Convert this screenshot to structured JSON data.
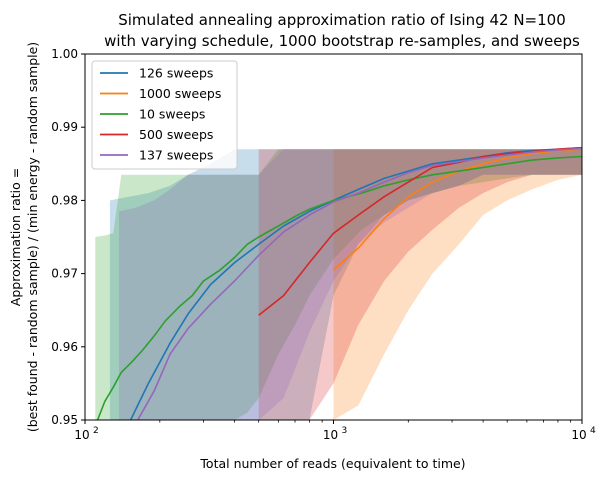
{
  "chart_data": {
    "type": "line",
    "title": "Simulated annealing approximation ratio of Ising 42 N=100\nwith varying schedule, 1000 bootstrap re-samples, and sweeps",
    "xlabel": "Total number of reads (equivalent to time)",
    "ylabel": "Approximation ratio =\n(best found - random sample) / (min energy - random sample)",
    "xscale": "log",
    "xlim": [
      100,
      10000
    ],
    "ylim": [
      0.95,
      1.0
    ],
    "xticks": [
      {
        "value": 100,
        "base": "10",
        "exp": "2"
      },
      {
        "value": 1000,
        "base": "10",
        "exp": "3"
      },
      {
        "value": 10000,
        "base": "10",
        "exp": "4"
      }
    ],
    "yticks": [
      "0.95",
      "0.96",
      "0.97",
      "0.98",
      "0.99",
      "1.00"
    ],
    "legend_position": "upper-left",
    "series": [
      {
        "name": "126 sweeps",
        "color": "#1f77b4",
        "x": [
          126,
          150,
          180,
          220,
          260,
          320,
          400,
          500,
          630,
          800,
          1000,
          1260,
          1600,
          2000,
          2500,
          3200,
          4000,
          5000,
          6300,
          8000,
          10000
        ],
        "y": [
          0.945,
          0.9495,
          0.955,
          0.9605,
          0.9645,
          0.9685,
          0.9715,
          0.974,
          0.9765,
          0.9785,
          0.98,
          0.9815,
          0.983,
          0.984,
          0.985,
          0.9855,
          0.986,
          0.9865,
          0.9868,
          0.987,
          0.9872
        ],
        "band_low": [
          0.95,
          0.95,
          0.95,
          0.95,
          0.95,
          0.95,
          0.95,
          0.95,
          0.95,
          0.95,
          0.967,
          0.974,
          0.978,
          0.98,
          0.981,
          0.982,
          0.9835,
          0.9835,
          0.9835,
          0.9835,
          0.9835
        ],
        "band_high": [
          0.98,
          0.9805,
          0.981,
          0.982,
          0.9835,
          0.985,
          0.987,
          0.987,
          0.987,
          0.987,
          0.987,
          0.987,
          0.987,
          0.987,
          0.987,
          0.987,
          0.987,
          0.987,
          0.987,
          0.987,
          0.987
        ]
      },
      {
        "name": "1000 sweeps",
        "color": "#ff7f0e",
        "x": [
          1000,
          1260,
          1600,
          2000,
          2500,
          3200,
          4000,
          5000,
          6300,
          8000,
          10000
        ],
        "y": [
          0.9705,
          0.9735,
          0.9775,
          0.9805,
          0.9825,
          0.984,
          0.985,
          0.9858,
          0.9864,
          0.9868,
          0.987
        ],
        "band_low": [
          0.95,
          0.952,
          0.959,
          0.965,
          0.97,
          0.974,
          0.978,
          0.98,
          0.9815,
          0.9828,
          0.9835
        ],
        "band_high": [
          0.987,
          0.987,
          0.987,
          0.987,
          0.987,
          0.987,
          0.987,
          0.987,
          0.987,
          0.987,
          0.987
        ]
      },
      {
        "name": "10 sweeps",
        "color": "#2ca02c",
        "x": [
          110,
          120,
          130,
          140,
          155,
          170,
          190,
          210,
          240,
          270,
          300,
          350,
          400,
          450,
          500,
          600,
          700,
          800,
          1000,
          1300,
          1600,
          2000,
          2500,
          3200,
          4000,
          5000,
          6300,
          8000,
          10000
        ],
        "y": [
          0.9492,
          0.9525,
          0.9545,
          0.9565,
          0.958,
          0.9595,
          0.9615,
          0.9635,
          0.9655,
          0.967,
          0.969,
          0.9705,
          0.9722,
          0.974,
          0.975,
          0.9765,
          0.9778,
          0.9788,
          0.98,
          0.981,
          0.982,
          0.9828,
          0.9835,
          0.984,
          0.9845,
          0.985,
          0.9855,
          0.9858,
          0.986
        ],
        "band_low": [
          0.95,
          0.95,
          0.95,
          0.95,
          0.95,
          0.95,
          0.95,
          0.95,
          0.95,
          0.95,
          0.95,
          0.95,
          0.95,
          0.951,
          0.953,
          0.959,
          0.963,
          0.967,
          0.972,
          0.976,
          0.978,
          0.98,
          0.981,
          0.982,
          0.9825,
          0.983,
          0.9835,
          0.9835,
          0.9835
        ],
        "band_high": [
          0.975,
          0.9752,
          0.9755,
          0.9835,
          0.9835,
          0.9835,
          0.9835,
          0.9835,
          0.9835,
          0.9835,
          0.9835,
          0.9835,
          0.9835,
          0.9835,
          0.9835,
          0.987,
          0.987,
          0.987,
          0.987,
          0.987,
          0.987,
          0.987,
          0.987,
          0.987,
          0.987,
          0.987,
          0.987,
          0.987,
          0.987
        ]
      },
      {
        "name": "500 sweeps",
        "color": "#d62728",
        "x": [
          500,
          630,
          800,
          1000,
          1260,
          1600,
          2000,
          2500,
          3200,
          4000,
          5000,
          6300,
          8000,
          10000
        ],
        "y": [
          0.9643,
          0.967,
          0.9715,
          0.9755,
          0.978,
          0.9805,
          0.9825,
          0.9845,
          0.9852,
          0.986,
          0.9864,
          0.9867,
          0.987,
          0.9872
        ],
        "band_low": [
          0.95,
          0.95,
          0.95,
          0.955,
          0.963,
          0.969,
          0.973,
          0.976,
          0.979,
          0.981,
          0.9825,
          0.9835,
          0.9835,
          0.9835
        ],
        "band_high": [
          0.987,
          0.987,
          0.987,
          0.987,
          0.987,
          0.987,
          0.987,
          0.987,
          0.987,
          0.987,
          0.987,
          0.987,
          0.987,
          0.987
        ]
      },
      {
        "name": "137 sweeps",
        "color": "#9467bd",
        "x": [
          137,
          160,
          190,
          220,
          260,
          320,
          400,
          500,
          630,
          800,
          1000,
          1260,
          1600,
          2000,
          2500,
          3200,
          4000,
          5000,
          6300,
          8000,
          10000
        ],
        "y": [
          0.945,
          0.9495,
          0.954,
          0.959,
          0.9625,
          0.9658,
          0.969,
          0.9725,
          0.9757,
          0.978,
          0.9798,
          0.981,
          0.9825,
          0.9838,
          0.9848,
          0.9853,
          0.9858,
          0.9862,
          0.9866,
          0.9869,
          0.9871
        ],
        "band_low": [
          0.95,
          0.95,
          0.95,
          0.95,
          0.95,
          0.95,
          0.95,
          0.95,
          0.953,
          0.962,
          0.969,
          0.974,
          0.977,
          0.979,
          0.981,
          0.982,
          0.9835,
          0.9835,
          0.9835,
          0.9835,
          0.9835
        ],
        "band_high": [
          0.9785,
          0.979,
          0.98,
          0.9815,
          0.9835,
          0.9835,
          0.9835,
          0.9835,
          0.987,
          0.987,
          0.987,
          0.987,
          0.987,
          0.987,
          0.987,
          0.987,
          0.987,
          0.987,
          0.987,
          0.987,
          0.987
        ]
      }
    ]
  }
}
